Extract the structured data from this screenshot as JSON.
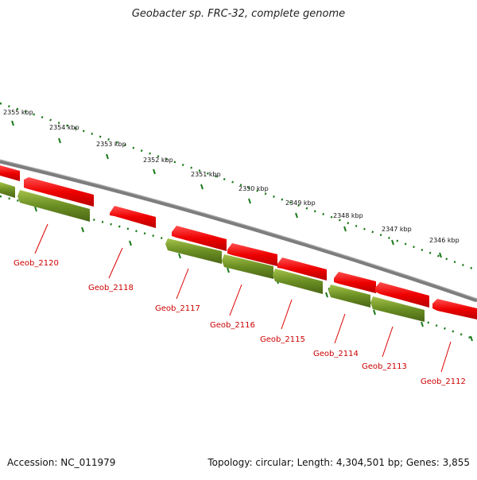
{
  "title": "Geobacter sp. FRC-32, complete genome",
  "footer": {
    "accession": "Accession: NC_011979",
    "summary": "Topology: circular; Length: 4,304,501 bp; Genes: 3,855"
  },
  "colors": {
    "backbone": "#7a7a7a",
    "forward_gene": "#ee0000",
    "reverse_gene": "#6b8e23",
    "ticks": "#1a7a1a",
    "label": "#cc0000"
  },
  "kbp_ticks": [
    {
      "kbp": 2355,
      "label": "2355 kbp"
    },
    {
      "kbp": 2354,
      "label": "2354 kbp"
    },
    {
      "kbp": 2353,
      "label": "2353 kbp"
    },
    {
      "kbp": 2352,
      "label": "2352 kbp"
    },
    {
      "kbp": 2351,
      "label": "2351 kbp"
    },
    {
      "kbp": 2350,
      "label": "2350 kbp"
    },
    {
      "kbp": 2349,
      "label": "2349 kbp"
    },
    {
      "kbp": 2348,
      "label": "2348 kbp"
    },
    {
      "kbp": 2347,
      "label": "2347 kbp"
    },
    {
      "kbp": 2346,
      "label": "2346 kbp"
    }
  ],
  "gene_labels": [
    "Geob_2120",
    "Geob_2118",
    "Geob_2117",
    "Geob_2116",
    "Geob_2115",
    "Geob_2114",
    "Geob_2113",
    "Geob_2112"
  ]
}
